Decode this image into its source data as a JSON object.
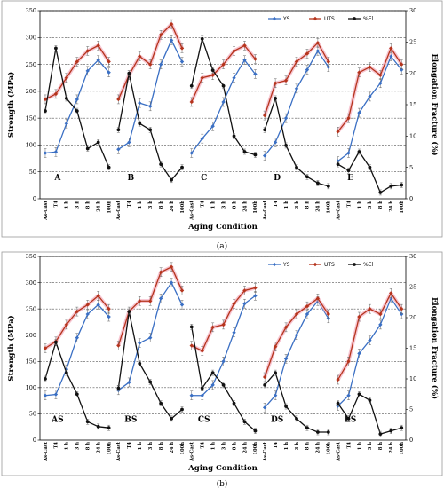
{
  "chart_data": [
    {
      "type": "line",
      "panel_caption": "(a)",
      "xlabel": "Aging Condition",
      "ylabel": "Strength (MPa)",
      "y2label": "Elongation Fracture (%)",
      "ylim": [
        0,
        350
      ],
      "y2lim": [
        0,
        30
      ],
      "yticks": [
        0,
        50,
        100,
        150,
        200,
        250,
        300,
        350
      ],
      "y2ticks": [
        0,
        5,
        10,
        15,
        20,
        25,
        30
      ],
      "grid": "horizontal-dashed",
      "legend": "top-right",
      "colors": {
        "YS": "#3a6fc4",
        "UTS": "#b5341c",
        "El": "#111111"
      },
      "groups": [
        {
          "label": "A",
          "categories": [
            "As-Cast",
            "T4",
            "1 h",
            "3 h",
            "8 h",
            "24 h",
            "100h"
          ],
          "YS": [
            85,
            87,
            140,
            185,
            238,
            258,
            235
          ],
          "UTS": [
            185,
            195,
            225,
            255,
            275,
            285,
            255
          ],
          "El": [
            14,
            24,
            16,
            14,
            8,
            9,
            5
          ]
        },
        {
          "label": "B",
          "categories": [
            "As-Cast",
            "T4",
            "1 h",
            "3 h",
            "8 h",
            "24 h",
            "100h"
          ],
          "YS": [
            92,
            105,
            178,
            172,
            250,
            295,
            255
          ],
          "UTS": [
            185,
            230,
            265,
            250,
            305,
            325,
            280
          ],
          "El": [
            11,
            20,
            12,
            11,
            5.5,
            3,
            5
          ]
        },
        {
          "label": "C",
          "categories": [
            "As-Cast",
            "T4",
            "1 h",
            "3 h",
            "8 h",
            "24 h",
            "100h"
          ],
          "YS": [
            85,
            112,
            135,
            180,
            225,
            258,
            232
          ],
          "UTS": [
            180,
            225,
            230,
            250,
            275,
            285,
            260
          ],
          "El": [
            18,
            25.5,
            20.5,
            18,
            10,
            7.5,
            7
          ]
        },
        {
          "label": "D",
          "categories": [
            "As-Cast",
            "T4",
            "1 h",
            "3 h",
            "8 h",
            "24 h",
            "100h"
          ],
          "YS": [
            80,
            105,
            150,
            205,
            240,
            275,
            245
          ],
          "UTS": [
            155,
            215,
            220,
            255,
            270,
            290,
            255
          ],
          "El": [
            11,
            16,
            8.5,
            5,
            3.5,
            2.5,
            2
          ]
        },
        {
          "label": "E",
          "categories": [
            "As-Cast",
            "T4",
            "1 h",
            "3 h",
            "8 h",
            "24 h",
            "100h"
          ],
          "YS": [
            70,
            85,
            160,
            190,
            215,
            265,
            240
          ],
          "UTS": [
            125,
            150,
            235,
            245,
            230,
            280,
            250
          ],
          "El": [
            5.5,
            4.5,
            7.5,
            5,
            1,
            2,
            2.2
          ]
        }
      ],
      "series": [
        {
          "name": "YS",
          "key": "YS",
          "marker": "diamond"
        },
        {
          "name": "UTS",
          "key": "UTS",
          "marker": "diamond"
        },
        {
          "name": "%El",
          "key": "El",
          "marker": "circle"
        }
      ]
    },
    {
      "type": "line",
      "panel_caption": "(b)",
      "xlabel": "Aging Condition",
      "ylabel": "Strength (MPa)",
      "y2label": "Elongation Fracture (%)",
      "ylim": [
        0,
        350
      ],
      "y2lim": [
        0,
        30
      ],
      "yticks": [
        0,
        50,
        100,
        150,
        200,
        250,
        300,
        350
      ],
      "y2ticks": [
        0,
        5,
        10,
        15,
        20,
        25,
        30
      ],
      "grid": "horizontal-dashed",
      "legend": "top-right",
      "colors": {
        "YS": "#3a6fc4",
        "UTS": "#b5341c",
        "El": "#111111"
      },
      "groups": [
        {
          "label": "AS",
          "categories": [
            "As-Cast",
            "T4",
            "1 h",
            "3 h",
            "8 h",
            "24 h",
            "100h"
          ],
          "YS": [
            85,
            87,
            135,
            195,
            240,
            258,
            235
          ],
          "UTS": [
            175,
            188,
            220,
            245,
            258,
            275,
            250
          ],
          "El": [
            10,
            16,
            11,
            7.5,
            3,
            2.2,
            2
          ]
        },
        {
          "label": "BS",
          "categories": [
            "As-Cast",
            "T4",
            "1 h",
            "3 h",
            "8 h",
            "24 h",
            "100h"
          ],
          "YS": [
            95,
            110,
            185,
            195,
            270,
            300,
            258
          ],
          "UTS": [
            180,
            245,
            265,
            265,
            320,
            330,
            285
          ],
          "El": [
            8.5,
            21,
            12.5,
            9.5,
            6,
            3.5,
            5
          ]
        },
        {
          "label": "CS",
          "categories": [
            "As-Cast",
            "T4",
            "1 h",
            "3 h",
            "8 h",
            "24 h",
            "100h"
          ],
          "YS": [
            85,
            85,
            105,
            150,
            205,
            260,
            275
          ],
          "UTS": [
            180,
            170,
            215,
            220,
            260,
            285,
            290
          ],
          "El": [
            18.5,
            8.5,
            11,
            9,
            6,
            3,
            1.5
          ]
        },
        {
          "label": "DS",
          "categories": [
            "As-Cast",
            "T4",
            "1 h",
            "3 h",
            "8 h",
            "24 h",
            "100h"
          ],
          "YS": [
            62,
            85,
            155,
            200,
            240,
            265,
            232
          ],
          "UTS": [
            120,
            178,
            215,
            240,
            255,
            270,
            240
          ],
          "El": [
            9,
            11,
            5.5,
            3.5,
            2,
            1.3,
            1.3
          ]
        },
        {
          "label": "ES",
          "categories": [
            "As-Cast",
            "T4",
            "1 h",
            "3 h",
            "8 h",
            "24 h",
            "100h"
          ],
          "YS": [
            65,
            85,
            165,
            190,
            220,
            270,
            240
          ],
          "UTS": [
            115,
            150,
            235,
            250,
            240,
            280,
            250
          ],
          "El": [
            6,
            3.5,
            7.5,
            6.5,
            1,
            1.5,
            2
          ]
        }
      ],
      "series": [
        {
          "name": "YS",
          "key": "YS",
          "marker": "diamond"
        },
        {
          "name": "UTS",
          "key": "UTS",
          "marker": "diamond"
        },
        {
          "name": "%El",
          "key": "El",
          "marker": "circle"
        }
      ]
    }
  ]
}
